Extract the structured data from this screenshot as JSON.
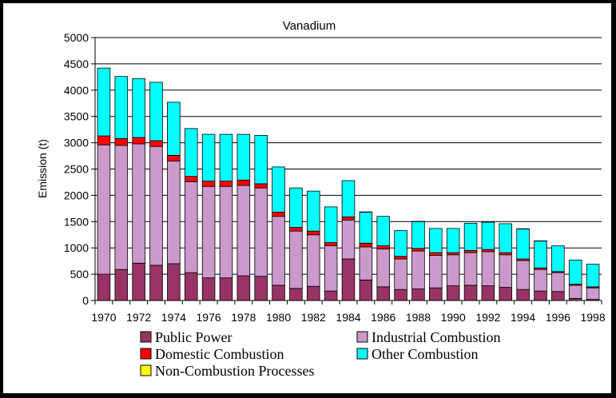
{
  "chart_data": {
    "type": "bar",
    "stacked": true,
    "title": "Vanadium",
    "xlabel": "",
    "ylabel": "Emission (t)",
    "ylim": [
      0,
      5000
    ],
    "yticks": [
      "0",
      "500",
      "1000",
      "1500",
      "2000",
      "2500",
      "3000",
      "3500",
      "4000",
      "4500",
      "5000"
    ],
    "categories": [
      "1970",
      "1971",
      "1972",
      "1973",
      "1974",
      "1975",
      "1976",
      "1977",
      "1978",
      "1979",
      "1980",
      "1981",
      "1982",
      "1983",
      "1984",
      "1985",
      "1986",
      "1987",
      "1988",
      "1989",
      "1990",
      "1991",
      "1992",
      "1993",
      "1994",
      "1995",
      "1996",
      "1997",
      "1998"
    ],
    "xtick_labels": [
      "1970",
      "1972",
      "1974",
      "1976",
      "1978",
      "1980",
      "1982",
      "1984",
      "1986",
      "1988",
      "1990",
      "1992",
      "1994",
      "1996",
      "1998"
    ],
    "grid": true,
    "legend_position": "bottom",
    "series": [
      {
        "name": "Public Power",
        "color": "#993366",
        "values": [
          500,
          590,
          710,
          670,
          700,
          530,
          430,
          430,
          470,
          460,
          290,
          230,
          270,
          180,
          790,
          390,
          260,
          210,
          220,
          240,
          280,
          290,
          280,
          250,
          210,
          180,
          170,
          40,
          20
        ]
      },
      {
        "name": "Industrial Combustion",
        "color": "#CC99CC",
        "values": [
          2460,
          2360,
          2270,
          2260,
          1950,
          1730,
          1740,
          1740,
          1720,
          1680,
          1310,
          1090,
          980,
          860,
          740,
          630,
          720,
          580,
          720,
          620,
          590,
          620,
          650,
          620,
          550,
          410,
          360,
          250,
          220
        ]
      },
      {
        "name": "Domestic Combustion",
        "color": "#FF0000",
        "values": [
          170,
          130,
          120,
          110,
          110,
          100,
          100,
          100,
          100,
          80,
          80,
          70,
          70,
          60,
          60,
          70,
          60,
          50,
          50,
          50,
          40,
          40,
          40,
          40,
          30,
          30,
          20,
          20,
          20
        ]
      },
      {
        "name": "Other Combustion",
        "color": "#00FFFF",
        "values": [
          1290,
          1180,
          1120,
          1110,
          1010,
          910,
          890,
          890,
          870,
          920,
          860,
          750,
          760,
          680,
          690,
          590,
          560,
          490,
          510,
          460,
          460,
          520,
          520,
          550,
          570,
          510,
          490,
          460,
          430
        ]
      },
      {
        "name": "Non-Combustion Processes",
        "color": "#FFFF00",
        "values": [
          0,
          0,
          0,
          0,
          0,
          0,
          0,
          0,
          0,
          0,
          0,
          0,
          0,
          0,
          0,
          5,
          0,
          0,
          5,
          0,
          0,
          0,
          5,
          0,
          5,
          5,
          0,
          0,
          0
        ]
      }
    ]
  }
}
